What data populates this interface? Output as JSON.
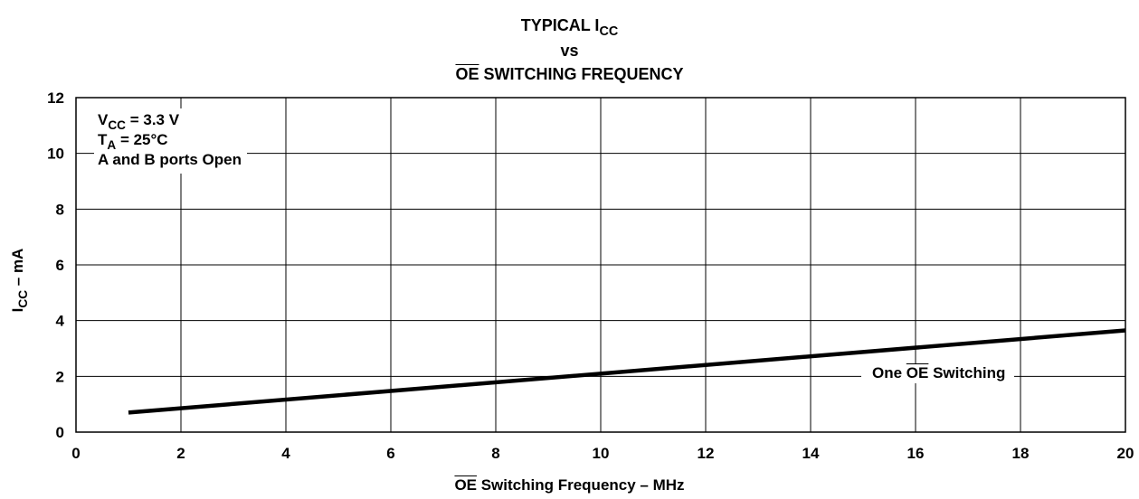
{
  "chart_data": {
    "type": "line",
    "title_line1": "TYPICAL I",
    "title_line1_sub": "CC",
    "title_line2": "vs",
    "title_line3_over": "OE",
    "title_line3_rest": " SWITCHING FREQUENCY",
    "xlabel_over": "OE",
    "xlabel_rest": " Switching Frequency – MHz",
    "ylabel_main": "I",
    "ylabel_sub": "CC",
    "ylabel_rest": " – mA",
    "xlim": [
      0,
      20
    ],
    "ylim": [
      0,
      12
    ],
    "xticks": [
      0,
      2,
      4,
      6,
      8,
      10,
      12,
      14,
      16,
      18,
      20
    ],
    "yticks": [
      0,
      2,
      4,
      6,
      8,
      10,
      12
    ],
    "grid": true,
    "conditions": {
      "vcc_main": "V",
      "vcc_sub": "CC",
      "vcc_rest": " = 3.3 V",
      "ta_main": "T",
      "ta_sub": "A",
      "ta_rest": " = 25°C",
      "ports": "A and B ports Open"
    },
    "series": [
      {
        "label_pre": "One ",
        "label_over": "OE",
        "label_post": " Switching",
        "x": [
          1,
          20
        ],
        "y": [
          0.7,
          3.65
        ]
      }
    ]
  }
}
